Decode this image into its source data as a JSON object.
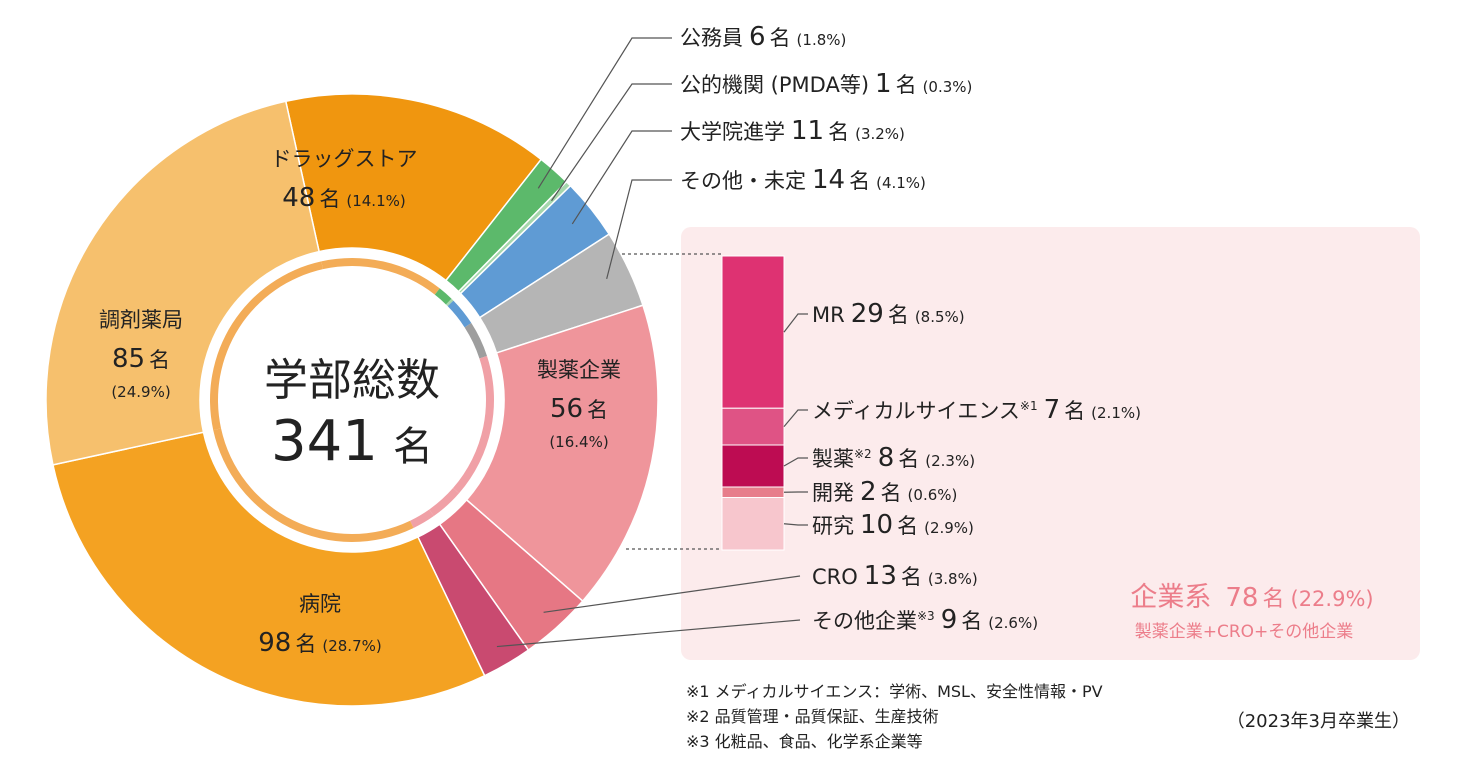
{
  "center": {
    "title": "学部総数",
    "total": "341",
    "unit": "名"
  },
  "chart_data": {
    "type": "pie",
    "title": "",
    "total": 341,
    "slices": [
      {
        "id": "drugstore",
        "name": "ドラッグストア",
        "count": 48,
        "unit": "名",
        "pct": "(14.1%)",
        "color": "#f0960f"
      },
      {
        "id": "public-servant",
        "name": "公務員",
        "count": 6,
        "unit": "名",
        "pct": "(1.8%)",
        "color": "#5cb96b"
      },
      {
        "id": "public-org",
        "name": "公的機関 (PMDA等)",
        "count": 1,
        "unit": "名",
        "pct": "(0.3%)",
        "color": "#a6d7ad"
      },
      {
        "id": "grad-school",
        "name": "大学院進学",
        "count": 11,
        "unit": "名",
        "pct": "(3.2%)",
        "color": "#5f9bd4"
      },
      {
        "id": "other-undecided",
        "name": "その他・未定",
        "count": 14,
        "unit": "名",
        "pct": "(4.1%)",
        "color": "#b5b5b5"
      },
      {
        "id": "pharma",
        "name": "製薬企業",
        "count": 56,
        "unit": "名",
        "pct": "(16.4%)",
        "color": "#ef959b"
      },
      {
        "id": "cro",
        "name": "CRO",
        "count": 13,
        "unit": "名",
        "pct": "(3.8%)",
        "color": "#e67784"
      },
      {
        "id": "other-company",
        "name": "その他企業",
        "sup": "※3",
        "count": 9,
        "unit": "名",
        "pct": "(2.6%)",
        "color": "#c94a70"
      },
      {
        "id": "hospital",
        "name": "病院",
        "count": 98,
        "unit": "名",
        "pct": "(28.7%)",
        "color": "#f4a222"
      },
      {
        "id": "pharmacy",
        "name": "調剤薬局",
        "count": 85,
        "unit": "名",
        "pct": "(24.9%)",
        "color": "#f6c06d"
      }
    ],
    "inner_ring": {
      "segments": [
        {
          "id": "drugstore",
          "color": "#f3ac57"
        },
        {
          "id": "public-servant",
          "color": "#5cb96b"
        },
        {
          "id": "public-org",
          "color": "#a6d7ad"
        },
        {
          "id": "grad-school",
          "color": "#5f9bd4"
        },
        {
          "id": "other-undecided",
          "color": "#9e9e9e"
        },
        {
          "id": "pharma",
          "color": "#f0a0a6"
        },
        {
          "id": "cro",
          "color": "#f0a0a6"
        },
        {
          "id": "other-company",
          "color": "#f0a0a6"
        },
        {
          "id": "hospital",
          "color": "#f3ac57"
        },
        {
          "id": "pharmacy",
          "color": "#f3ac57"
        }
      ]
    },
    "pharma_breakdown": [
      {
        "id": "mr",
        "name": "MR",
        "count": 29,
        "unit": "名",
        "pct": "(8.5%)",
        "color": "#de3272"
      },
      {
        "id": "medical-science",
        "name": "メディカルサイエンス",
        "sup": "※1",
        "count": 7,
        "unit": "名",
        "pct": "(2.1%)",
        "color": "#df5385"
      },
      {
        "id": "manufacturing",
        "name": "製薬",
        "sup": "※2",
        "count": 8,
        "unit": "名",
        "pct": "(2.3%)",
        "color": "#bd0c52"
      },
      {
        "id": "development",
        "name": "開発",
        "count": 2,
        "unit": "名",
        "pct": "(0.6%)",
        "color": "#e77d8b"
      },
      {
        "id": "research",
        "name": "研究",
        "count": 10,
        "unit": "名",
        "pct": "(2.9%)",
        "color": "#f7c6cd"
      }
    ],
    "corporate_total": {
      "name": "企業系",
      "count": 78,
      "unit": "名",
      "pct": "(22.9%)",
      "note": "製薬企業+CRO+その他企業",
      "color": "#ec7d8a"
    }
  },
  "panel": {
    "bg": "#fcebec"
  },
  "footnotes": [
    "※1 メディカルサイエンス：学術、MSL、安全性情報・PV",
    "※2 品質管理・品質保証、生産技術",
    "※3 化粧品、食品、化学系企業等"
  ],
  "graduation": "（2023年3月卒業生）"
}
